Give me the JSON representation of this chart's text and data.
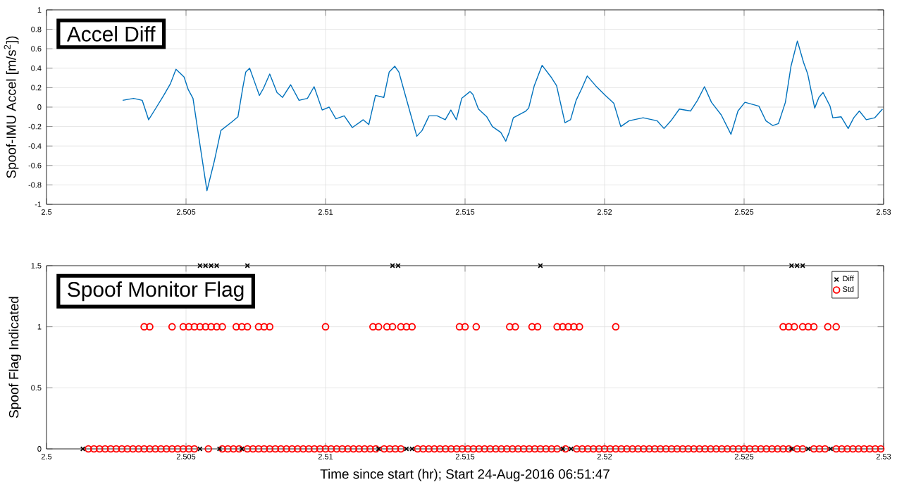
{
  "chart_data": [
    {
      "type": "line",
      "title": "Accel Diff",
      "ylabel": "Spoof-IMU Accel [m/s$^{2}$])",
      "xlim": [
        2.5,
        2.53
      ],
      "xticks": [
        2.5,
        2.505,
        2.51,
        2.515,
        2.52,
        2.525,
        2.53
      ],
      "ylim": [
        -1,
        1
      ],
      "yticks": [
        -1,
        -0.8,
        -0.6,
        -0.4,
        -0.2,
        0,
        0.2,
        0.4,
        0.6,
        0.8,
        1
      ],
      "grid": true,
      "series": [
        {
          "color": "#0072bd",
          "x": [
            2.50273,
            2.50312,
            2.50343,
            2.50366,
            2.5039,
            2.5042,
            2.50444,
            2.50464,
            2.50493,
            2.50508,
            2.50525,
            2.50547,
            2.50575,
            2.50601,
            2.50625,
            2.50665,
            2.50686,
            2.50704,
            2.50714,
            2.50728,
            2.50748,
            2.50763,
            2.50777,
            2.508,
            2.50826,
            2.50846,
            2.50875,
            2.50905,
            2.50935,
            2.50959,
            2.50988,
            2.51013,
            2.51037,
            2.51067,
            2.51096,
            2.51135,
            2.51155,
            2.51179,
            2.51209,
            2.51228,
            2.51248,
            2.51263,
            2.51292,
            2.51327,
            2.51346,
            2.51371,
            2.514,
            2.51429,
            2.51449,
            2.51469,
            2.51488,
            2.51518,
            2.51528,
            2.51548,
            2.51578,
            2.51598,
            2.51628,
            2.51646,
            2.51658,
            2.51673,
            2.51718,
            2.51728,
            2.51748,
            2.51776,
            2.51808,
            2.51828,
            2.51858,
            2.51878,
            2.51898,
            2.51918,
            2.51938,
            2.51968,
            2.52003,
            2.52033,
            2.52058,
            2.52088,
            2.52138,
            2.52188,
            2.52213,
            2.52238,
            2.52268,
            2.52308,
            2.52333,
            2.52358,
            2.52383,
            2.52418,
            2.52453,
            2.52478,
            2.52503,
            2.52553,
            2.52578,
            2.52603,
            2.52623,
            2.52648,
            2.52668,
            2.52691,
            2.52713,
            2.52728,
            2.52753,
            2.52768,
            2.52783,
            2.52808,
            2.52818,
            2.52848,
            2.52873,
            2.52893,
            2.52913,
            2.52938,
            2.52968,
            2.52996
          ],
          "values": [
            0.07,
            0.09,
            0.07,
            -0.13,
            -0.02,
            0.12,
            0.24,
            0.39,
            0.31,
            0.18,
            0.09,
            -0.33,
            -0.86,
            -0.56,
            -0.24,
            -0.15,
            -0.1,
            0.21,
            0.36,
            0.4,
            0.24,
            0.12,
            0.19,
            0.34,
            0.15,
            0.1,
            0.23,
            0.07,
            0.09,
            0.21,
            -0.03,
            0.0,
            -0.12,
            -0.09,
            -0.21,
            -0.13,
            -0.18,
            0.12,
            0.1,
            0.36,
            0.42,
            0.36,
            0.06,
            -0.3,
            -0.24,
            -0.09,
            -0.09,
            -0.13,
            -0.03,
            -0.13,
            0.09,
            0.16,
            0.13,
            -0.02,
            -0.1,
            -0.2,
            -0.26,
            -0.35,
            -0.26,
            -0.11,
            -0.04,
            -0.01,
            0.22,
            0.43,
            0.31,
            0.22,
            -0.16,
            -0.13,
            0.07,
            0.19,
            0.32,
            0.22,
            0.12,
            0.04,
            -0.2,
            -0.14,
            -0.11,
            -0.14,
            -0.22,
            -0.14,
            -0.02,
            -0.04,
            0.07,
            0.21,
            0.05,
            -0.08,
            -0.28,
            -0.04,
            0.05,
            0.01,
            -0.14,
            -0.19,
            -0.17,
            0.05,
            0.42,
            0.68,
            0.46,
            0.34,
            -0.01,
            0.1,
            0.15,
            0.01,
            -0.11,
            -0.1,
            -0.22,
            -0.11,
            -0.04,
            -0.13,
            -0.11,
            -0.02
          ]
        }
      ]
    },
    {
      "type": "scatter",
      "title": "Spoof Monitor Flag",
      "xlabel": "Time since start (hr); Start 24-Aug-2016 06:51:47",
      "ylabel": "Spoof Flag Indicated",
      "xlim": [
        2.5,
        2.53
      ],
      "xticks": [
        2.5,
        2.505,
        2.51,
        2.515,
        2.52,
        2.525,
        2.53
      ],
      "ylim": [
        0,
        1.5
      ],
      "yticks": [
        0,
        0.5,
        1,
        1.5
      ],
      "grid": true,
      "legend": "top right",
      "series": [
        {
          "name": "Diff",
          "color": "#000000",
          "marker": "cross",
          "x": [
            2.5055,
            2.5057,
            2.5059,
            2.5061,
            2.5072,
            2.5124,
            2.5126,
            2.5177,
            2.5267,
            2.5269,
            2.5271,
            2.5013,
            2.5055,
            2.5062,
            2.507,
            2.5119,
            2.5129,
            2.5131,
            2.5185,
            2.5188,
            2.5267,
            2.5273,
            2.5281
          ],
          "values": [
            1.5,
            1.5,
            1.5,
            1.5,
            1.5,
            1.5,
            1.5,
            1.5,
            1.5,
            1.5,
            1.5,
            0,
            0,
            0,
            0,
            0,
            0,
            0,
            0,
            0,
            0,
            0,
            0
          ]
        },
        {
          "name": "Std",
          "color": "#ff0000",
          "marker": "circle",
          "x": [
            2.5035,
            2.5037,
            2.5045,
            2.5049,
            2.5051,
            2.5053,
            2.5055,
            2.5057,
            2.5059,
            2.5061,
            2.5063,
            2.5068,
            2.507,
            2.5072,
            2.5076,
            2.5078,
            2.508,
            2.51,
            2.5117,
            2.5119,
            2.5122,
            2.5124,
            2.5127,
            2.5129,
            2.5131,
            2.5148,
            2.515,
            2.5154,
            2.5166,
            2.5168,
            2.5174,
            2.5176,
            2.5183,
            2.5185,
            2.5187,
            2.5189,
            2.5191,
            2.5204,
            2.5264,
            2.5266,
            2.5268,
            2.5271,
            2.5273,
            2.5275,
            2.528,
            2.5283,
            2.5015,
            2.5017,
            2.5019,
            2.5021,
            2.5023,
            2.5025,
            2.5027,
            2.5029,
            2.5031,
            2.5033,
            2.5035,
            2.5037,
            2.5039,
            2.5041,
            2.5043,
            2.5045,
            2.5047,
            2.5049,
            2.5051,
            2.5053,
            2.5058,
            2.5063,
            2.5065,
            2.5067,
            2.5069,
            2.5072,
            2.5074,
            2.5076,
            2.5078,
            2.508,
            2.5082,
            2.5084,
            2.5086,
            2.5088,
            2.509,
            2.5092,
            2.5094,
            2.5096,
            2.5098,
            2.51,
            2.5102,
            2.5104,
            2.5106,
            2.5108,
            2.511,
            2.5112,
            2.5114,
            2.5116,
            2.5118,
            2.5121,
            2.5123,
            2.5125,
            2.5127,
            2.5133,
            2.5135,
            2.5137,
            2.5139,
            2.5141,
            2.5143,
            2.5145,
            2.5147,
            2.5149,
            2.5151,
            2.5153,
            2.5155,
            2.5157,
            2.5159,
            2.5161,
            2.5163,
            2.5165,
            2.5167,
            2.5169,
            2.5171,
            2.5173,
            2.5175,
            2.5177,
            2.5179,
            2.5181,
            2.5183,
            2.5186,
            2.519,
            2.5192,
            2.5194,
            2.5196,
            2.5198,
            2.52,
            2.5202,
            2.5204,
            2.5206,
            2.5208,
            2.521,
            2.5212,
            2.5214,
            2.5216,
            2.5218,
            2.522,
            2.5222,
            2.5224,
            2.5226,
            2.5228,
            2.523,
            2.5232,
            2.5234,
            2.5236,
            2.5238,
            2.524,
            2.5242,
            2.5244,
            2.5246,
            2.5248,
            2.525,
            2.5252,
            2.5254,
            2.5256,
            2.5258,
            2.526,
            2.5262,
            2.5264,
            2.5266,
            2.5269,
            2.5271,
            2.5275,
            2.5277,
            2.5279,
            2.5283,
            2.5285,
            2.5287,
            2.5289,
            2.5291,
            2.5293,
            2.5295,
            2.5297,
            2.5299
          ],
          "values": [
            1,
            1,
            1,
            1,
            1,
            1,
            1,
            1,
            1,
            1,
            1,
            1,
            1,
            1,
            1,
            1,
            1,
            1,
            1,
            1,
            1,
            1,
            1,
            1,
            1,
            1,
            1,
            1,
            1,
            1,
            1,
            1,
            1,
            1,
            1,
            1,
            1,
            1,
            1,
            1,
            1,
            1,
            1,
            1,
            1,
            1,
            0,
            0,
            0,
            0,
            0,
            0,
            0,
            0,
            0,
            0,
            0,
            0,
            0,
            0,
            0,
            0,
            0,
            0,
            0,
            0,
            0,
            0,
            0,
            0,
            0,
            0,
            0,
            0,
            0,
            0,
            0,
            0,
            0,
            0,
            0,
            0,
            0,
            0,
            0,
            0,
            0,
            0,
            0,
            0,
            0,
            0,
            0,
            0,
            0,
            0,
            0,
            0,
            0,
            0,
            0,
            0,
            0,
            0,
            0,
            0,
            0,
            0,
            0,
            0,
            0,
            0,
            0,
            0,
            0,
            0,
            0,
            0,
            0,
            0,
            0,
            0,
            0,
            0,
            0,
            0,
            0,
            0,
            0,
            0,
            0,
            0,
            0,
            0,
            0,
            0,
            0,
            0,
            0,
            0,
            0,
            0,
            0,
            0,
            0,
            0,
            0,
            0,
            0,
            0,
            0,
            0,
            0,
            0,
            0,
            0,
            0,
            0,
            0,
            0,
            0,
            0,
            0,
            0,
            0,
            0,
            0,
            0,
            0,
            0,
            0,
            0,
            0,
            0,
            0,
            0,
            0,
            0,
            0
          ]
        }
      ]
    }
  ]
}
